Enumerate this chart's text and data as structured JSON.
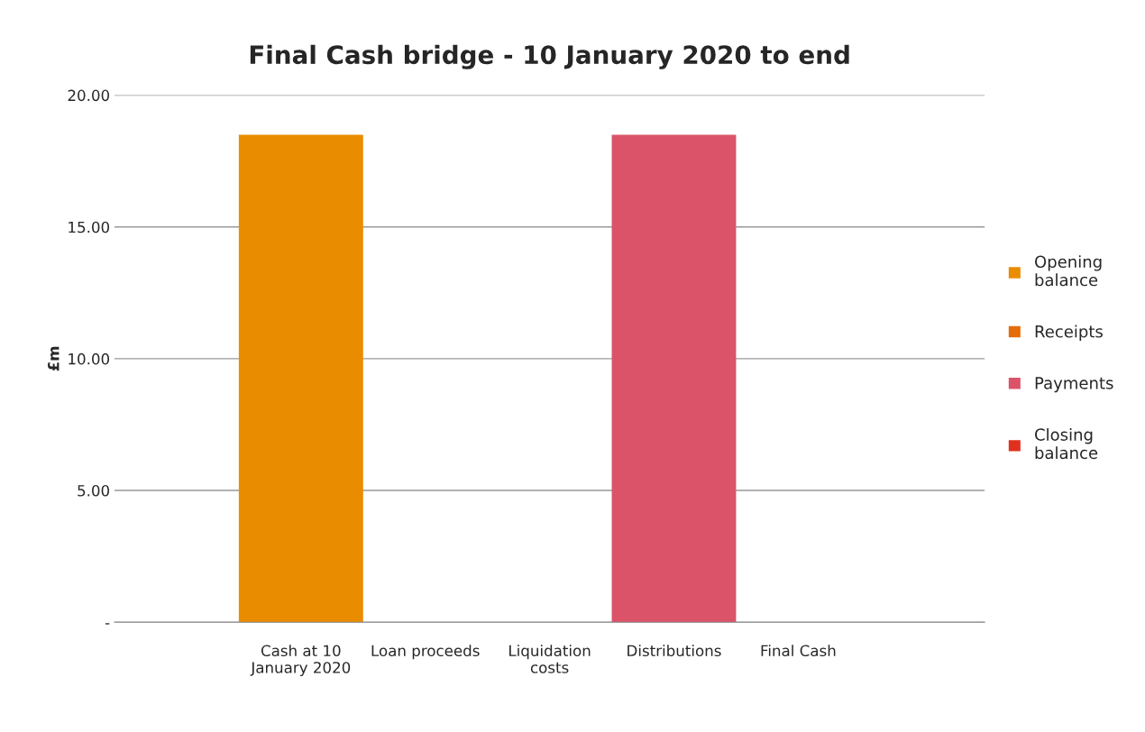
{
  "chart_data": {
    "type": "bar",
    "title": "Final Cash bridge - 10 January 2020 to end",
    "ylabel": "£m",
    "categories": [
      null,
      "Cash at 10 January 2020",
      "Loan proceeds",
      "Liquidation costs",
      "Distributions",
      "Final Cash",
      null
    ],
    "series": [
      {
        "name": "Opening balance",
        "color": "#ea8c00",
        "values": [
          null,
          18.5,
          null,
          null,
          null,
          null,
          null
        ]
      },
      {
        "name": "Receipts",
        "color": "#e46c0a",
        "values": [
          null,
          null,
          null,
          null,
          null,
          null,
          null
        ]
      },
      {
        "name": "Payments",
        "color": "#db5369",
        "values": [
          null,
          null,
          null,
          null,
          18.5,
          null,
          null
        ]
      },
      {
        "name": "Closing balance",
        "color": "#e0301e",
        "values": [
          null,
          null,
          null,
          null,
          null,
          null,
          null
        ]
      }
    ],
    "ylim": [
      0,
      20
    ],
    "yticks": [
      {
        "value": 0,
        "label": "-"
      },
      {
        "value": 5,
        "label": "5.00"
      },
      {
        "value": 10,
        "label": "10.00"
      },
      {
        "value": 15,
        "label": "15.00"
      },
      {
        "value": 20,
        "label": "20.00"
      }
    ],
    "grid": "y",
    "legend": "right"
  }
}
